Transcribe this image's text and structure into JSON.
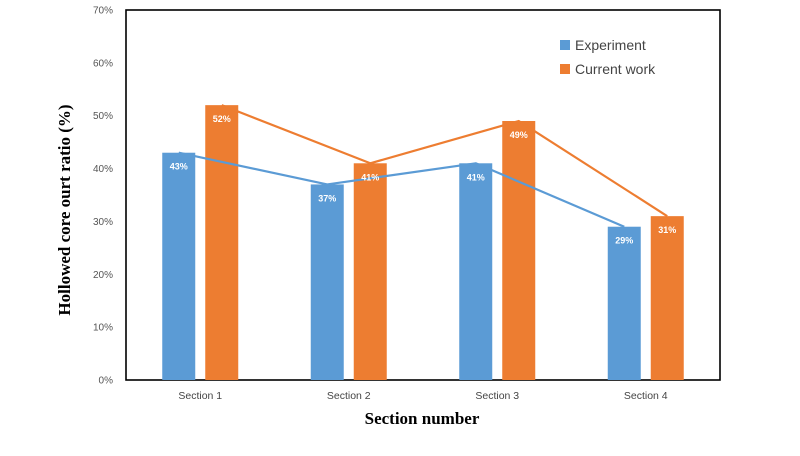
{
  "chart_data": {
    "type": "bar",
    "title": "",
    "xlabel": "Section number",
    "ylabel": "Hollowed core ourt ratio (%)",
    "ylim": [
      0,
      70
    ],
    "ytick_step": 10,
    "ytick_labels": [
      "0%",
      "10%",
      "20%",
      "30%",
      "40%",
      "50%",
      "60%",
      "70%"
    ],
    "categories": [
      "Section 1",
      "Section 2",
      "Section 3",
      "Section 4"
    ],
    "legend_position": "top-right",
    "grid": false,
    "series": [
      {
        "name": "Experiment",
        "color": "#5b9bd5",
        "values": [
          43,
          37,
          41,
          29
        ],
        "labels": [
          "43%",
          "37%",
          "41%",
          "29%"
        ]
      },
      {
        "name": "Current work",
        "color": "#ed7d31",
        "values": [
          52,
          41,
          49,
          31
        ],
        "labels": [
          "52%",
          "41%",
          "49%",
          "31%"
        ]
      }
    ],
    "overlay_lines": true
  }
}
